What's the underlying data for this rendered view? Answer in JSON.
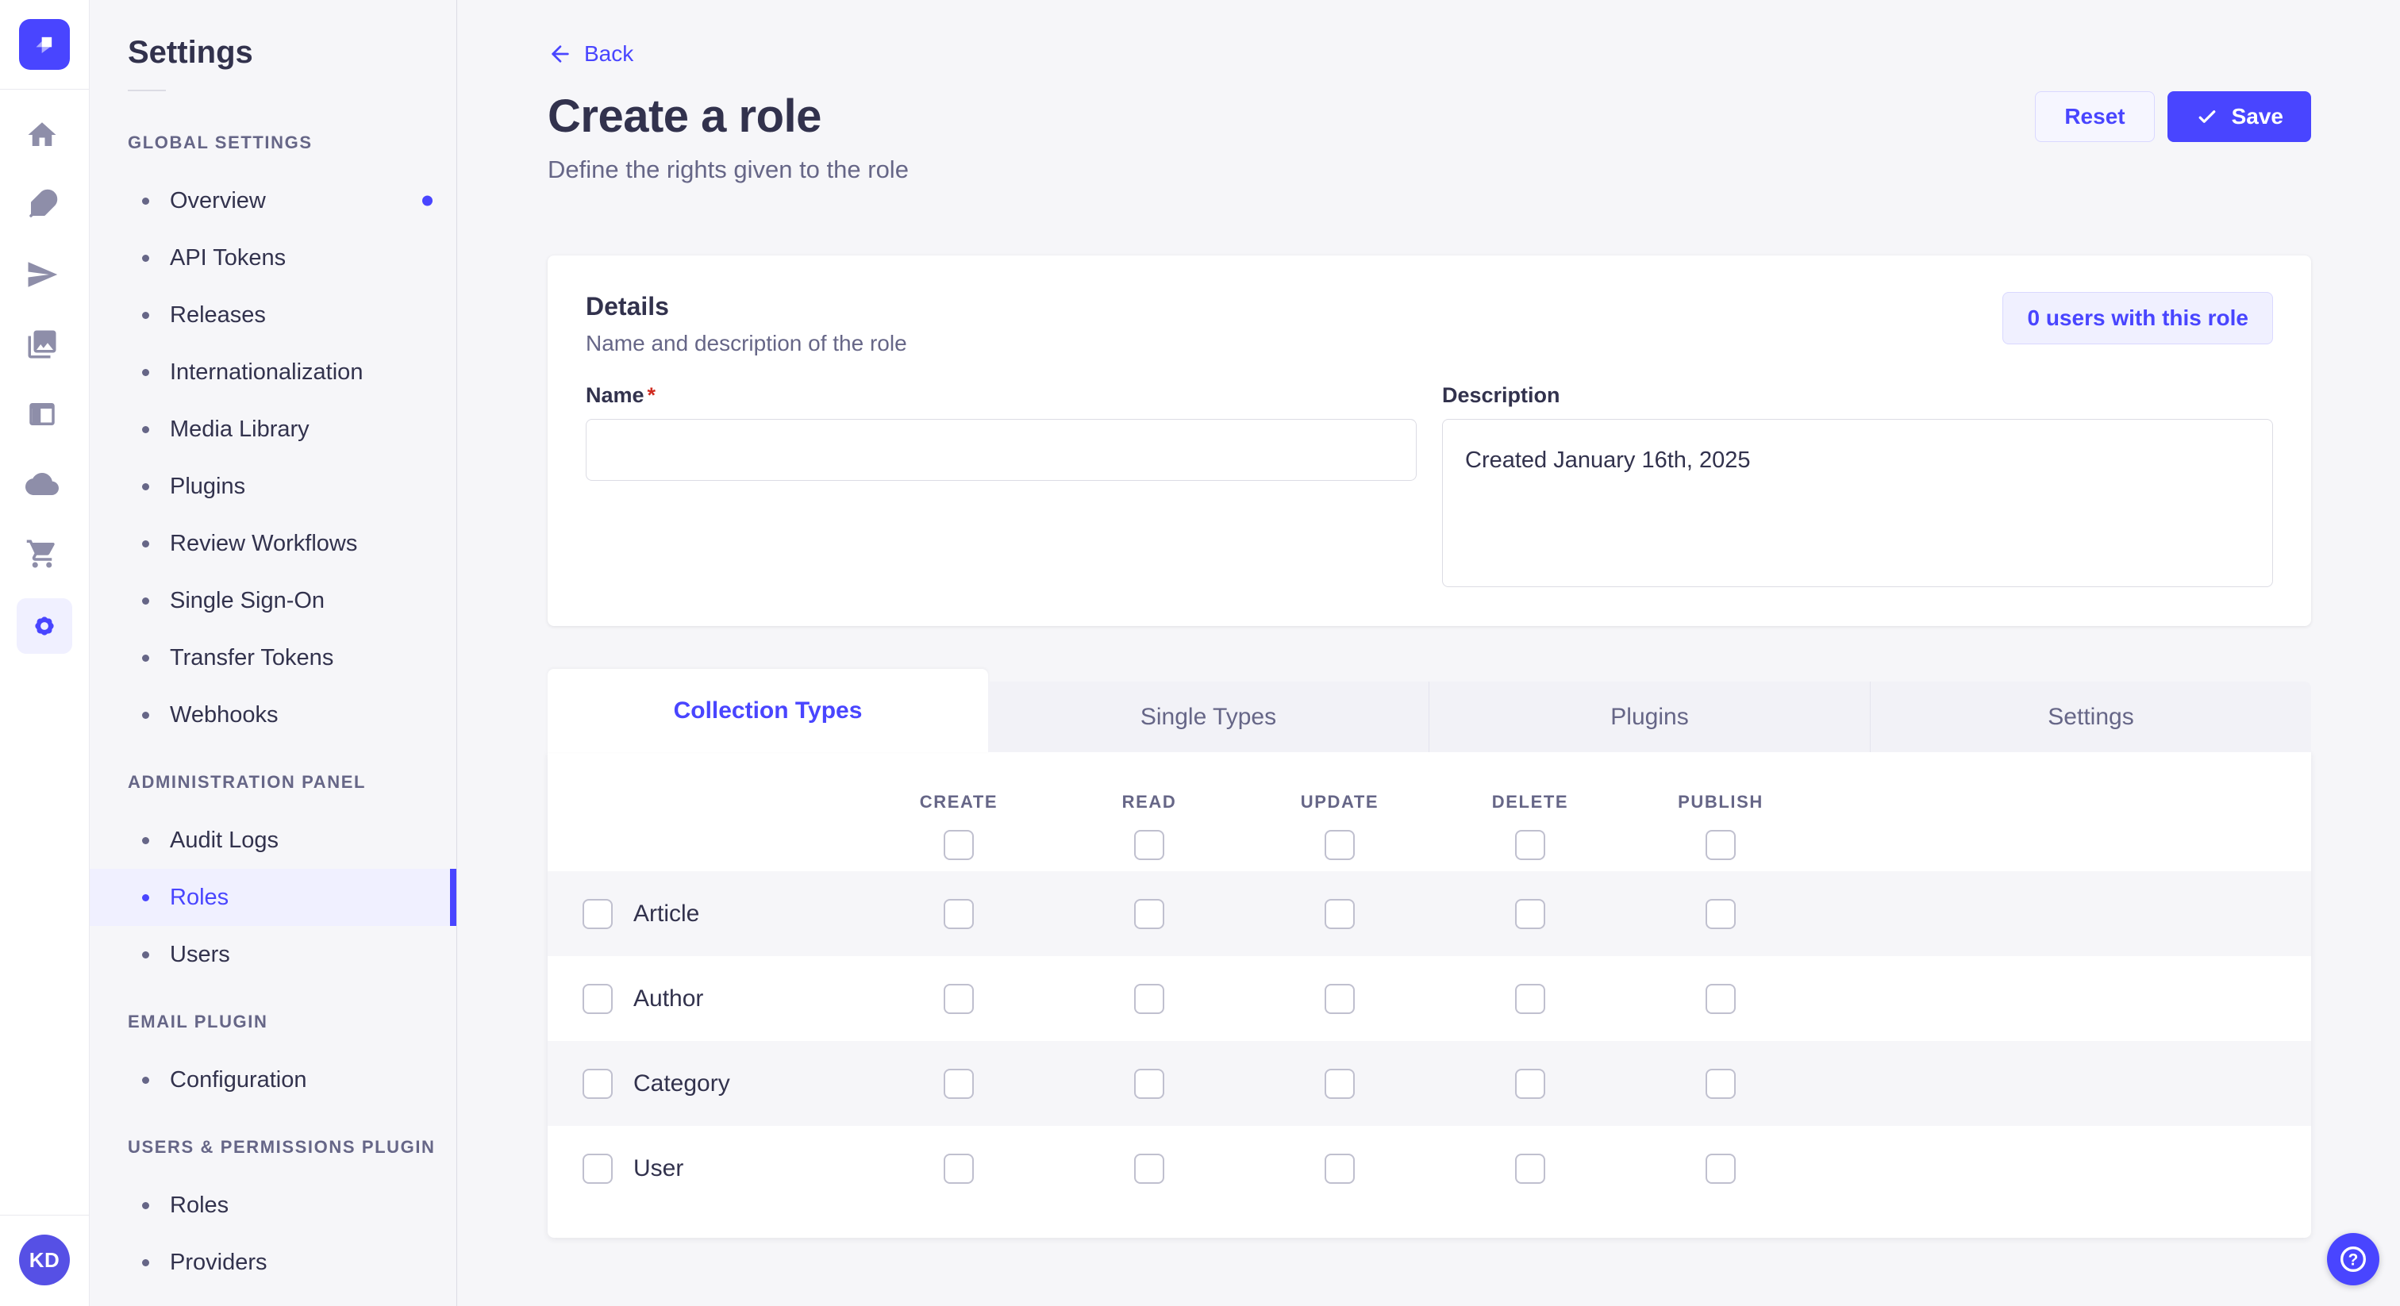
{
  "colors": {
    "primary": "#4945ff",
    "primary_light_bg": "#f0f0ff",
    "primary_border": "#d9d8ff",
    "text_dark": "#32324d",
    "text_muted": "#666687",
    "border_neutral": "#dcdce4",
    "checkbox_border": "#c0c0cf",
    "page_bg": "#f6f6f9",
    "required_red": "#d02b20"
  },
  "rail": {
    "logo_icon": "strapi-logo",
    "icons": [
      "home-icon",
      "feather-icon",
      "paper-plane-icon",
      "media-library-icon",
      "layout-icon",
      "cloud-icon",
      "cart-icon",
      "settings-gear-icon"
    ],
    "active_icon": "settings-gear-icon",
    "avatar_initials": "KD"
  },
  "sidebar": {
    "title": "Settings",
    "sections": [
      {
        "label": "GLOBAL SETTINGS",
        "items": [
          {
            "label": "Overview",
            "dot": true
          },
          {
            "label": "API Tokens"
          },
          {
            "label": "Releases"
          },
          {
            "label": "Internationalization"
          },
          {
            "label": "Media Library"
          },
          {
            "label": "Plugins"
          },
          {
            "label": "Review Workflows"
          },
          {
            "label": "Single Sign-On"
          },
          {
            "label": "Transfer Tokens"
          },
          {
            "label": "Webhooks"
          }
        ]
      },
      {
        "label": "ADMINISTRATION PANEL",
        "items": [
          {
            "label": "Audit Logs"
          },
          {
            "label": "Roles",
            "active": true
          },
          {
            "label": "Users"
          }
        ]
      },
      {
        "label": "EMAIL PLUGIN",
        "items": [
          {
            "label": "Configuration"
          }
        ]
      },
      {
        "label": "USERS & PERMISSIONS PLUGIN",
        "items": [
          {
            "label": "Roles"
          },
          {
            "label": "Providers"
          }
        ]
      }
    ]
  },
  "header": {
    "back_label": "Back",
    "title": "Create a role",
    "subtitle": "Define the rights given to the role",
    "reset_label": "Reset",
    "save_label": "Save"
  },
  "details_card": {
    "title": "Details",
    "subtitle": "Name and description of the role",
    "badge": "0 users with this role",
    "name_label": "Name",
    "name_required": "*",
    "name_value": "",
    "description_label": "Description",
    "description_value": "Created January 16th, 2025"
  },
  "tabs": [
    {
      "label": "Collection Types",
      "active": true
    },
    {
      "label": "Single Types"
    },
    {
      "label": "Plugins"
    },
    {
      "label": "Settings"
    }
  ],
  "permissions_table": {
    "columns": [
      "CREATE",
      "READ",
      "UPDATE",
      "DELETE",
      "PUBLISH"
    ],
    "select_all_checked": [
      false,
      false,
      false,
      false,
      false
    ],
    "rows": [
      {
        "label": "Article",
        "row_checked": false,
        "checks": [
          false,
          false,
          false,
          false,
          false
        ]
      },
      {
        "label": "Author",
        "row_checked": false,
        "checks": [
          false,
          false,
          false,
          false,
          false
        ]
      },
      {
        "label": "Category",
        "row_checked": false,
        "checks": [
          false,
          false,
          false,
          false,
          false
        ]
      },
      {
        "label": "User",
        "row_checked": false,
        "checks": [
          false,
          false,
          false,
          false,
          false
        ]
      }
    ]
  },
  "help": {
    "icon": "question-mark-icon"
  }
}
